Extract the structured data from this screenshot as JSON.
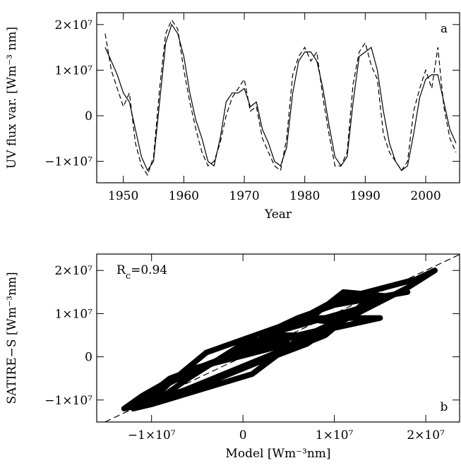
{
  "chart_data": [
    {
      "type": "line",
      "xlabel": "Year",
      "ylabel": "UV flux var. [Wm⁻³ nm]",
      "panel_label": "a",
      "xlim": [
        1945.6,
        2005.6
      ],
      "ylim": [
        -14700000,
        22600000
      ],
      "xticks": [
        1950,
        1960,
        1970,
        1980,
        1990,
        2000
      ],
      "yticks": [
        {
          "value": -10000000,
          "label": "−1×10⁷"
        },
        0,
        {
          "value": 10000000,
          "label": "1×10⁷"
        },
        {
          "value": 20000000,
          "label": "2×10⁷"
        }
      ],
      "x": [
        1947,
        1948,
        1949,
        1950,
        1951,
        1952,
        1953,
        1954,
        1955,
        1956,
        1957,
        1958,
        1959,
        1960,
        1961,
        1962,
        1963,
        1964,
        1965,
        1966,
        1967,
        1968,
        1969,
        1970,
        1971,
        1972,
        1973,
        1974,
        1975,
        1976,
        1977,
        1978,
        1979,
        1980,
        1981,
        1982,
        1983,
        1984,
        1985,
        1986,
        1987,
        1988,
        1989,
        1990,
        1991,
        1992,
        1993,
        1994,
        1995,
        1996,
        1997,
        1998,
        1999,
        2000,
        2001,
        2002,
        2003,
        2004,
        2005
      ],
      "series": [
        {
          "color": "#000000",
          "dash": "solid",
          "values": [
            15000000,
            12000000,
            9000000,
            5000000,
            3000000,
            -3000000,
            -9000000,
            -12000000,
            -10000000,
            3000000,
            16000000,
            20000000,
            18000000,
            13000000,
            5000000,
            -1000000,
            -5000000,
            -10000000,
            -11000000,
            -5000000,
            3000000,
            5000000,
            5000000,
            6000000,
            2000000,
            3000000,
            -3000000,
            -6000000,
            -10000000,
            -11000000,
            -7000000,
            5000000,
            12000000,
            14000000,
            14000000,
            12000000,
            6000000,
            -2000000,
            -9000000,
            -11000000,
            -9000000,
            3000000,
            13000000,
            14000000,
            15000000,
            10000000,
            1000000,
            -6000000,
            -10000000,
            -12000000,
            -11000000,
            -4000000,
            4000000,
            8000000,
            9000000,
            9000000,
            3000000,
            -3000000,
            -6000000
          ]
        },
        {
          "color": "#000000",
          "dash": "dashed",
          "values": [
            18000000,
            10000000,
            6000000,
            2000000,
            5000000,
            -6000000,
            -11000000,
            -13000000,
            -9000000,
            6000000,
            18000000,
            21000000,
            19000000,
            10000000,
            3000000,
            -3000000,
            -8000000,
            -11000000,
            -10000000,
            -6000000,
            0,
            4000000,
            6000000,
            8000000,
            1000000,
            2000000,
            -5000000,
            -8000000,
            -11000000,
            -12000000,
            -5000000,
            9000000,
            13000000,
            15000000,
            12000000,
            14000000,
            4000000,
            -4000000,
            -11000000,
            -11000000,
            -8000000,
            7000000,
            14000000,
            16000000,
            11000000,
            8000000,
            -4000000,
            -8000000,
            -10000000,
            -12000000,
            -10000000,
            1000000,
            6000000,
            10000000,
            6000000,
            15000000,
            2000000,
            -5000000,
            -8000000
          ]
        }
      ]
    },
    {
      "type": "scatter",
      "xlabel": "Model [Wm⁻³nm]",
      "ylabel": "SATIRE−S [Wm⁻³nm]",
      "panel_label": "b",
      "annotation": {
        "main": "R",
        "subscript": "c",
        "tail": "=0.94"
      },
      "diagonal": true,
      "xlim": [
        -16000000,
        23700000
      ],
      "ylim": [
        -15100000,
        23800000
      ],
      "xticks": [
        {
          "value": -10000000,
          "label": "−1×10⁷"
        },
        0,
        {
          "value": 10000000,
          "label": "1×10⁷"
        },
        {
          "value": 20000000,
          "label": "2×10⁷"
        }
      ],
      "yticks": [
        {
          "value": -10000000,
          "label": "−1×10⁷"
        },
        0,
        {
          "value": 10000000,
          "label": "1×10⁷"
        },
        {
          "value": 20000000,
          "label": "2×10⁷"
        }
      ],
      "color": "#000000",
      "x": [
        18000000,
        10000000,
        6000000,
        2000000,
        5000000,
        -6000000,
        -11000000,
        -13000000,
        -9000000,
        6000000,
        18000000,
        21000000,
        19000000,
        10000000,
        3000000,
        -3000000,
        -8000000,
        -11000000,
        -10000000,
        -6000000,
        0,
        4000000,
        6000000,
        8000000,
        1000000,
        2000000,
        -5000000,
        -8000000,
        -11000000,
        -12000000,
        -5000000,
        9000000,
        13000000,
        15000000,
        12000000,
        14000000,
        4000000,
        -4000000,
        -11000000,
        -11000000,
        -8000000,
        7000000,
        14000000,
        16000000,
        11000000,
        8000000,
        -4000000,
        -8000000,
        -10000000,
        -12000000,
        -10000000,
        1000000,
        6000000,
        10000000,
        6000000,
        15000000,
        2000000,
        -5000000,
        -8000000
      ],
      "y": [
        15000000,
        12000000,
        9000000,
        5000000,
        3000000,
        -3000000,
        -9000000,
        -12000000,
        -10000000,
        3000000,
        16000000,
        20000000,
        18000000,
        13000000,
        5000000,
        -1000000,
        -5000000,
        -10000000,
        -11000000,
        -5000000,
        3000000,
        5000000,
        5000000,
        6000000,
        2000000,
        3000000,
        -3000000,
        -6000000,
        -10000000,
        -11000000,
        -7000000,
        5000000,
        12000000,
        14000000,
        14000000,
        12000000,
        6000000,
        -2000000,
        -9000000,
        -11000000,
        -9000000,
        3000000,
        13000000,
        14000000,
        15000000,
        10000000,
        1000000,
        -6000000,
        -10000000,
        -12000000,
        -11000000,
        -4000000,
        4000000,
        8000000,
        9000000,
        9000000,
        3000000,
        -3000000,
        -6000000
      ]
    }
  ]
}
